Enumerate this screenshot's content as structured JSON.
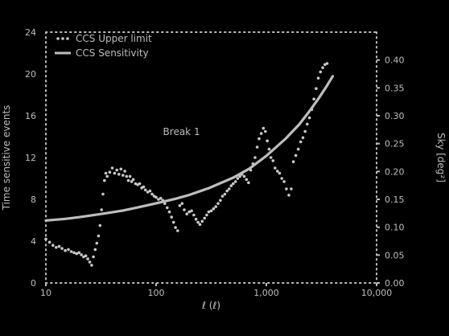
{
  "chart_data": {
    "type": "scatter",
    "title": "",
    "xlabel": "ℓ (ℓ)",
    "ylabel_left": "Time sensitive events",
    "ylabel_right": "Sky [deg²]",
    "x_scale": "log",
    "xlim": [
      10,
      10000
    ],
    "ylim_left": [
      0,
      24
    ],
    "ylim_right": [
      0,
      0.45
    ],
    "x_ticks": [
      {
        "value": 10,
        "label": "10"
      },
      {
        "value": 100,
        "label": "100"
      },
      {
        "value": 1000,
        "label": "1,000"
      },
      {
        "value": 10000,
        "label": "10,000"
      }
    ],
    "y_ticks_left": [
      {
        "value": 0,
        "label": "0"
      },
      {
        "value": 4,
        "label": "4"
      },
      {
        "value": 8,
        "label": "8"
      },
      {
        "value": 12,
        "label": "12"
      },
      {
        "value": 16,
        "label": "16"
      },
      {
        "value": 20,
        "label": "20"
      },
      {
        "value": 24,
        "label": "24"
      }
    ],
    "y_ticks_right": [
      {
        "value": 0,
        "label": "0.00"
      },
      {
        "value": 0.05,
        "label": "0.05"
      },
      {
        "value": 0.1,
        "label": "0.10"
      },
      {
        "value": 0.15,
        "label": "0.15"
      },
      {
        "value": 0.2,
        "label": "0.20"
      },
      {
        "value": 0.25,
        "label": "0.25"
      },
      {
        "value": 0.3,
        "label": "0.30"
      },
      {
        "value": 0.35,
        "label": "0.35"
      },
      {
        "value": 0.4,
        "label": "0.40"
      }
    ],
    "grid": false,
    "legend_position": "top-left",
    "colors": {
      "background": "#000000",
      "foreground": "#bdbdbd",
      "series_upper": "#c8c8c8",
      "series_curve": "#bdbdbd"
    },
    "annotations": [
      {
        "text": "Break 1",
        "x": 170,
        "y": 14
      }
    ],
    "series": [
      {
        "name": "CCS Upper limit",
        "kind": "scatter",
        "axis": "left",
        "points": [
          [
            10,
            4.2
          ],
          [
            10.8,
            3.9
          ],
          [
            11.6,
            3.6
          ],
          [
            12.4,
            3.4
          ],
          [
            13.2,
            3.5
          ],
          [
            14,
            3.3
          ],
          [
            15,
            3.1
          ],
          [
            16,
            3.2
          ],
          [
            17,
            3.0
          ],
          [
            18,
            2.9
          ],
          [
            19,
            2.8
          ],
          [
            20,
            2.9
          ],
          [
            21,
            2.7
          ],
          [
            22,
            2.5
          ],
          [
            23,
            2.6
          ],
          [
            24,
            2.3
          ],
          [
            25,
            2.0
          ],
          [
            26,
            1.7
          ],
          [
            27,
            2.5
          ],
          [
            28,
            3.2
          ],
          [
            29,
            3.8
          ],
          [
            30,
            4.5
          ],
          [
            31,
            5.5
          ],
          [
            32,
            7.0
          ],
          [
            33,
            8.5
          ],
          [
            34,
            9.8
          ],
          [
            35,
            10.5
          ],
          [
            36,
            10.2
          ],
          [
            38,
            10.6
          ],
          [
            40,
            11.0
          ],
          [
            42,
            10.5
          ],
          [
            44,
            10.8
          ],
          [
            46,
            10.4
          ],
          [
            48,
            10.9
          ],
          [
            50,
            10.3
          ],
          [
            52,
            10.7
          ],
          [
            54,
            10.2
          ],
          [
            56,
            9.8
          ],
          [
            58,
            10.2
          ],
          [
            60,
            9.7
          ],
          [
            62,
            9.9
          ],
          [
            65,
            9.5
          ],
          [
            68,
            9.4
          ],
          [
            71,
            9.5
          ],
          [
            74,
            9.1
          ],
          [
            77,
            9.2
          ],
          [
            80,
            8.9
          ],
          [
            84,
            8.7
          ],
          [
            88,
            8.8
          ],
          [
            92,
            8.5
          ],
          [
            96,
            8.3
          ],
          [
            100,
            8.2
          ],
          [
            105,
            8.0
          ],
          [
            110,
            8.1
          ],
          [
            115,
            7.9
          ],
          [
            120,
            7.6
          ],
          [
            126,
            7.2
          ],
          [
            132,
            6.8
          ],
          [
            138,
            6.3
          ],
          [
            144,
            5.8
          ],
          [
            150,
            5.3
          ],
          [
            157,
            5.0
          ],
          [
            164,
            7.4
          ],
          [
            172,
            7.6
          ],
          [
            180,
            7.0
          ],
          [
            190,
            6.6
          ],
          [
            200,
            6.8
          ],
          [
            210,
            6.9
          ],
          [
            220,
            6.5
          ],
          [
            230,
            6.1
          ],
          [
            240,
            5.8
          ],
          [
            250,
            5.6
          ],
          [
            262,
            5.9
          ],
          [
            275,
            6.2
          ],
          [
            288,
            6.5
          ],
          [
            300,
            6.8
          ],
          [
            316,
            6.9
          ],
          [
            332,
            7.1
          ],
          [
            348,
            7.3
          ],
          [
            365,
            7.6
          ],
          [
            383,
            7.9
          ],
          [
            400,
            8.3
          ],
          [
            420,
            8.5
          ],
          [
            440,
            8.8
          ],
          [
            460,
            9.0
          ],
          [
            480,
            9.3
          ],
          [
            500,
            9.5
          ],
          [
            525,
            9.7
          ],
          [
            550,
            10.0
          ],
          [
            575,
            10.2
          ],
          [
            600,
            10.4
          ],
          [
            630,
            10.2
          ],
          [
            660,
            9.9
          ],
          [
            690,
            9.6
          ],
          [
            720,
            10.8
          ],
          [
            755,
            11.4
          ],
          [
            790,
            12.0
          ],
          [
            825,
            13.0
          ],
          [
            860,
            13.8
          ],
          [
            900,
            14.3
          ],
          [
            940,
            14.8
          ],
          [
            980,
            14.5
          ],
          [
            1020,
            13.6
          ],
          [
            1060,
            12.8
          ],
          [
            1100,
            12.0
          ],
          [
            1150,
            11.7
          ],
          [
            1200,
            11.0
          ],
          [
            1260,
            10.7
          ],
          [
            1320,
            10.5
          ],
          [
            1380,
            10.0
          ],
          [
            1450,
            9.7
          ],
          [
            1520,
            9.0
          ],
          [
            1600,
            8.4
          ],
          [
            1680,
            9.0
          ],
          [
            1760,
            11.6
          ],
          [
            1850,
            12.2
          ],
          [
            1950,
            12.8
          ],
          [
            2050,
            13.5
          ],
          [
            2150,
            13.9
          ],
          [
            2250,
            14.5
          ],
          [
            2350,
            15.2
          ],
          [
            2460,
            15.8
          ],
          [
            2580,
            16.6
          ],
          [
            2700,
            17.6
          ],
          [
            2830,
            18.6
          ],
          [
            2960,
            19.6
          ],
          [
            3100,
            20.2
          ],
          [
            3250,
            20.6
          ],
          [
            3400,
            20.9
          ],
          [
            3560,
            21.0
          ]
        ]
      },
      {
        "name": "CCS Sensitivity",
        "kind": "line",
        "axis": "right",
        "points": [
          [
            10,
            0.112
          ],
          [
            15,
            0.115
          ],
          [
            20,
            0.118
          ],
          [
            30,
            0.123
          ],
          [
            50,
            0.13
          ],
          [
            70,
            0.136
          ],
          [
            100,
            0.143
          ],
          [
            150,
            0.151
          ],
          [
            200,
            0.158
          ],
          [
            300,
            0.17
          ],
          [
            500,
            0.189
          ],
          [
            700,
            0.205
          ],
          [
            1000,
            0.228
          ],
          [
            1500,
            0.259
          ],
          [
            2000,
            0.285
          ],
          [
            2500,
            0.31
          ],
          [
            3000,
            0.332
          ],
          [
            3500,
            0.352
          ],
          [
            4000,
            0.371
          ]
        ]
      }
    ]
  }
}
